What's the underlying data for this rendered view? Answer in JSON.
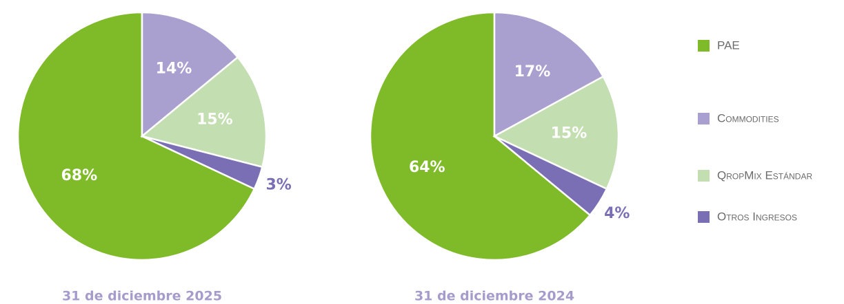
{
  "chart_data": [
    {
      "type": "pie",
      "title": "31 de diciembre 2025",
      "categories": [
        "PAE",
        "Commodities",
        "QropMix Estándar",
        "Otros Ingresos"
      ],
      "colors": [
        "#7fba29",
        "#a9a0d0",
        "#c3deb0",
        "#7a6fb5"
      ],
      "values": [
        68,
        14,
        15,
        3
      ],
      "value_labels": [
        "68%",
        "14%",
        "15%",
        "3%"
      ]
    },
    {
      "type": "pie",
      "title": "31 de diciembre 2024",
      "categories": [
        "PAE",
        "Commodities",
        "QropMix Estándar",
        "Otros Ingresos"
      ],
      "colors": [
        "#7fba29",
        "#a9a0d0",
        "#c3deb0",
        "#7a6fb5"
      ],
      "values": [
        64,
        17,
        15,
        4
      ],
      "value_labels": [
        "64%",
        "17%",
        "15%",
        "4%"
      ]
    }
  ]
}
